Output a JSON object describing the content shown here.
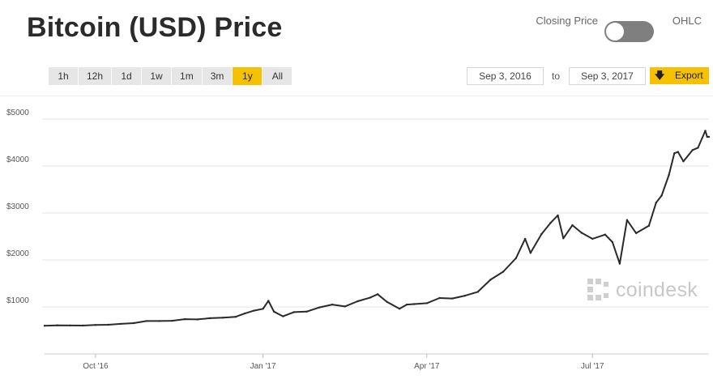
{
  "header": {
    "title": "Bitcoin (USD) Price",
    "toggle_left_label": "Closing Price",
    "toggle_right_label": "OHLC"
  },
  "range_buttons": [
    "1h",
    "12h",
    "1d",
    "1w",
    "1m",
    "3m",
    "1y",
    "All"
  ],
  "active_range": "1y",
  "date_range": {
    "from": "Sep 3, 2016",
    "to_label": "to",
    "to": "Sep 3, 2017"
  },
  "export_label": "Export",
  "watermark": {
    "brand": "coindesk"
  },
  "colors": {
    "accent": "#f5c100",
    "line": "#2a2a2a",
    "grid": "#e6e6e6",
    "button_bg": "#e6e6e6"
  },
  "icons": {
    "export": "download-arrow-icon",
    "logo": "coindesk-logo-icon"
  },
  "chart_data": {
    "type": "line",
    "title": "Bitcoin (USD) Price",
    "xlabel": "",
    "ylabel": "",
    "grid": true,
    "legend": "none",
    "xlim": [
      "2016-09-03",
      "2017-09-03"
    ],
    "ylim": [
      0,
      5500
    ],
    "y_ticks": [
      1000,
      2000,
      3000,
      4000,
      5000
    ],
    "y_tick_labels": [
      "$1000",
      "$2000",
      "$3000",
      "$4000",
      "$5000"
    ],
    "x_ticks": [
      "2016-10-01",
      "2017-01-01",
      "2017-04-01",
      "2017-07-01"
    ],
    "x_tick_labels": [
      "Oct '16",
      "Jan '17",
      "Apr '17",
      "Jul '17"
    ],
    "series": [
      {
        "x": [
          "2016-09-03",
          "2016-09-10",
          "2016-09-17",
          "2016-09-24",
          "2016-10-01",
          "2016-10-08",
          "2016-10-15",
          "2016-10-22",
          "2016-10-29",
          "2016-11-05",
          "2016-11-12",
          "2016-11-19",
          "2016-11-26",
          "2016-12-03",
          "2016-12-10",
          "2016-12-17",
          "2016-12-22",
          "2016-12-27",
          "2017-01-01",
          "2017-01-04",
          "2017-01-07",
          "2017-01-12",
          "2017-01-18",
          "2017-01-25",
          "2017-02-01",
          "2017-02-08",
          "2017-02-15",
          "2017-02-22",
          "2017-03-01",
          "2017-03-05",
          "2017-03-10",
          "2017-03-17",
          "2017-03-21",
          "2017-03-25",
          "2017-04-01",
          "2017-04-08",
          "2017-04-15",
          "2017-04-22",
          "2017-04-29",
          "2017-05-06",
          "2017-05-13",
          "2017-05-20",
          "2017-05-25",
          "2017-05-28",
          "2017-06-03",
          "2017-06-08",
          "2017-06-12",
          "2017-06-15",
          "2017-06-20",
          "2017-06-25",
          "2017-07-01",
          "2017-07-08",
          "2017-07-12",
          "2017-07-16",
          "2017-07-20",
          "2017-07-25",
          "2017-08-01",
          "2017-08-05",
          "2017-08-08",
          "2017-08-12",
          "2017-08-15",
          "2017-08-17",
          "2017-08-20",
          "2017-08-25",
          "2017-08-28",
          "2017-09-01",
          "2017-09-02",
          "2017-09-03"
        ],
        "y": [
          600,
          608,
          606,
          604,
          615,
          620,
          640,
          655,
          700,
          700,
          705,
          740,
          735,
          760,
          770,
          790,
          860,
          920,
          960,
          1130,
          900,
          800,
          890,
          900,
          990,
          1050,
          1010,
          1120,
          1200,
          1270,
          1110,
          960,
          1050,
          1060,
          1080,
          1190,
          1180,
          1240,
          1320,
          1580,
          1750,
          2040,
          2450,
          2150,
          2550,
          2790,
          2950,
          2460,
          2740,
          2580,
          2450,
          2540,
          2380,
          1920,
          2850,
          2570,
          2730,
          3220,
          3370,
          3810,
          4270,
          4300,
          4100,
          4340,
          4390,
          4750,
          4620,
          4620
        ]
      }
    ]
  }
}
